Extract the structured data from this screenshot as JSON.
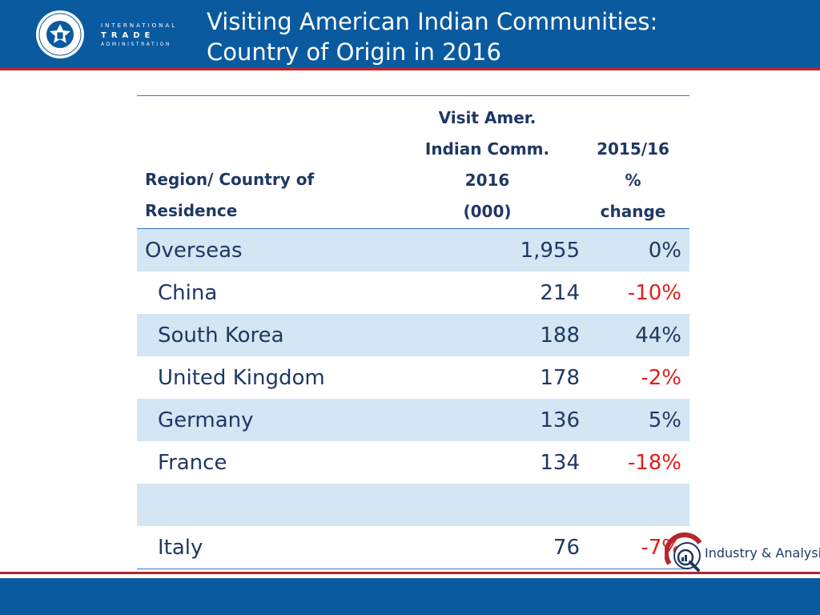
{
  "header": {
    "title_line1": "Visiting American Indian Communities:",
    "title_line2": "Country of Origin in 2016",
    "org_line1": "INTERNATIONAL",
    "org_line2": "TRADE",
    "org_line3": "ADMINISTRATION",
    "seal_text": "DEPARTMENT OF COMMERCE · UNITED STATES OF AMERICA"
  },
  "table": {
    "col_region_line1": "Region/ Country  of",
    "col_region_line2": "Residence",
    "col_visits_line1": "Visit Amer.",
    "col_visits_line2": "Indian Comm.",
    "col_visits_line3": "2016",
    "col_visits_line4": "(000)",
    "col_change_line1": "2015/16",
    "col_change_line2": "%",
    "col_change_line3": "change",
    "rows": [
      {
        "name": "Overseas",
        "value": "1,955",
        "change": "0%"
      },
      {
        "name": "China",
        "value": "214",
        "change": "-10%"
      },
      {
        "name": "South Korea",
        "value": "188",
        "change": "44%"
      },
      {
        "name": "United Kingdom",
        "value": "178",
        "change": "-2%"
      },
      {
        "name": "Germany",
        "value": "136",
        "change": "5%"
      },
      {
        "name": "France",
        "value": "134",
        "change": "-18%"
      },
      {
        "name": "",
        "value": "",
        "change": ""
      },
      {
        "name": "Italy",
        "value": "76",
        "change": "-7%"
      }
    ]
  },
  "footer": {
    "brand_text": "Industry & Analysis"
  },
  "colors": {
    "header_blue": "#0a5aa0",
    "accent_red": "#b5272d",
    "band_blue": "#d4e6f3",
    "text_navy": "#1f3864",
    "negative_red": "#e0201c"
  }
}
